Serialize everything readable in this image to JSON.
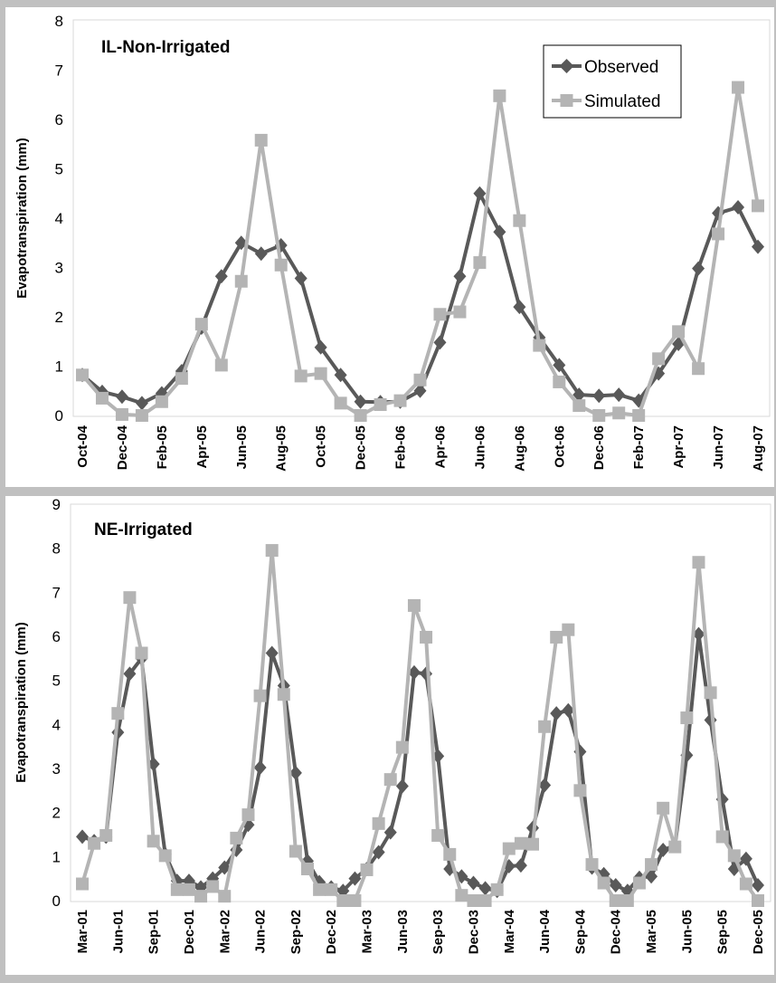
{
  "colors": {
    "observed": "#595959",
    "simulated": "#b4b4b4",
    "plot_bg": "#ffffff",
    "figure_bg": "#c0c0c0"
  },
  "chart_data": [
    {
      "type": "line",
      "title": "IL-Non-Irrigated",
      "ylabel": "Evapotranspiration (mm)",
      "xlabel": "",
      "ylim": [
        0,
        8
      ],
      "yticks": [
        "0",
        "1",
        "2",
        "3",
        "4",
        "5",
        "6",
        "7",
        "8"
      ],
      "xtick_labels": [
        "Oct-04",
        "Dec-04",
        "Feb-05",
        "Apr-05",
        "Jun-05",
        "Aug-05",
        "Oct-05",
        "Dec-05",
        "Feb-06",
        "Apr-06",
        "Jun-06",
        "Aug-06",
        "Oct-06",
        "Dec-06",
        "Feb-07",
        "Apr-07",
        "Jun-07",
        "Aug-07"
      ],
      "x": [
        "Oct-04",
        "Nov-04",
        "Dec-04",
        "Jan-05",
        "Feb-05",
        "Mar-05",
        "Apr-05",
        "May-05",
        "Jun-05",
        "Jul-05",
        "Aug-05",
        "Sep-05",
        "Oct-05",
        "Nov-05",
        "Dec-05",
        "Jan-06",
        "Feb-06",
        "Mar-06",
        "Apr-06",
        "May-06",
        "Jun-06",
        "Jul-06",
        "Aug-06",
        "Sep-06",
        "Oct-06",
        "Nov-06",
        "Dec-06",
        "Jan-07",
        "Feb-07",
        "Mar-07",
        "Apr-07",
        "May-07",
        "Jun-07",
        "Jul-07",
        "Aug-07"
      ],
      "legend": {
        "position": "top-right"
      },
      "series": [
        {
          "name": "Observed",
          "marker": "diamond",
          "values": [
            0.82,
            0.48,
            0.38,
            0.25,
            0.45,
            0.9,
            1.78,
            2.82,
            3.5,
            3.28,
            3.45,
            2.78,
            1.38,
            0.82,
            0.28,
            0.27,
            0.28,
            0.5,
            1.48,
            2.82,
            4.5,
            3.72,
            2.2,
            1.58,
            1.02,
            0.42,
            0.4,
            0.42,
            0.3,
            0.85,
            1.45,
            2.98,
            4.1,
            4.22,
            3.42
          ]
        },
        {
          "name": "Simulated",
          "marker": "square",
          "values": [
            0.82,
            0.35,
            0.02,
            0.0,
            0.28,
            0.75,
            1.85,
            1.02,
            2.72,
            5.58,
            3.05,
            0.8,
            0.85,
            0.25,
            0.0,
            0.22,
            0.3,
            0.72,
            2.05,
            2.1,
            3.1,
            6.48,
            3.95,
            1.42,
            0.68,
            0.2,
            0.0,
            0.05,
            0.0,
            1.15,
            1.7,
            0.95,
            3.68,
            6.65,
            4.25
          ]
        }
      ]
    },
    {
      "type": "line",
      "title": "NE-Irrigated",
      "ylabel": "Evapotranspiration (mm)",
      "xlabel": "",
      "ylim": [
        0,
        9
      ],
      "yticks": [
        "0",
        "1",
        "2",
        "3",
        "4",
        "5",
        "6",
        "7",
        "8",
        "9"
      ],
      "xtick_labels": [
        "Mar-01",
        "Jun-01",
        "Sep-01",
        "Dec-01",
        "Mar-02",
        "Jun-02",
        "Sep-02",
        "Dec-02",
        "Mar-03",
        "Jun-03",
        "Sep-03",
        "Dec-03",
        "Mar-04",
        "Jun-04",
        "Sep-04",
        "Dec-04",
        "Mar-05",
        "Jun-05",
        "Sep-05",
        "Dec-05"
      ],
      "x": [
        "Mar-01",
        "Apr-01",
        "May-01",
        "Jun-01",
        "Jul-01",
        "Aug-01",
        "Sep-01",
        "Oct-01",
        "Nov-01",
        "Dec-01",
        "Jan-02",
        "Feb-02",
        "Mar-02",
        "Apr-02",
        "May-02",
        "Jun-02",
        "Jul-02",
        "Aug-02",
        "Sep-02",
        "Oct-02",
        "Nov-02",
        "Dec-02",
        "Jan-03",
        "Feb-03",
        "Mar-03",
        "Apr-03",
        "May-03",
        "Jun-03",
        "Jul-03",
        "Aug-03",
        "Sep-03",
        "Oct-03",
        "Nov-03",
        "Dec-03",
        "Jan-04",
        "Feb-04",
        "Mar-04",
        "Apr-04",
        "May-04",
        "Jun-04",
        "Jul-04",
        "Aug-04",
        "Sep-04",
        "Oct-04",
        "Nov-04",
        "Dec-04",
        "Jan-05",
        "Feb-05",
        "Mar-05",
        "Apr-05",
        "May-05",
        "Jun-05",
        "Jul-05",
        "Aug-05",
        "Sep-05",
        "Oct-05",
        "Nov-05",
        "Dec-05"
      ],
      "legend": {
        "position": "none"
      },
      "series": [
        {
          "name": "Observed",
          "marker": "diamond",
          "values": [
            1.45,
            1.35,
            1.45,
            3.82,
            5.15,
            5.5,
            3.1,
            1.05,
            0.45,
            0.45,
            0.3,
            0.5,
            0.75,
            1.15,
            1.72,
            3.02,
            5.62,
            4.88,
            2.9,
            0.9,
            0.42,
            0.3,
            0.22,
            0.5,
            0.72,
            1.1,
            1.55,
            2.6,
            5.18,
            5.15,
            3.28,
            0.72,
            0.55,
            0.4,
            0.28,
            0.22,
            0.78,
            0.8,
            1.65,
            2.62,
            4.25,
            4.32,
            3.38,
            0.75,
            0.6,
            0.35,
            0.22,
            0.52,
            0.55,
            1.15,
            1.25,
            3.3,
            6.05,
            4.1,
            2.3,
            0.72,
            0.95,
            0.35
          ]
        },
        {
          "name": "Simulated",
          "marker": "square",
          "values": [
            0.38,
            1.3,
            1.48,
            4.25,
            6.88,
            5.62,
            1.35,
            1.02,
            0.25,
            0.25,
            0.1,
            0.32,
            0.1,
            1.42,
            1.95,
            4.65,
            7.95,
            4.68,
            1.12,
            0.72,
            0.25,
            0.25,
            0.0,
            0.0,
            0.7,
            1.75,
            2.75,
            3.48,
            6.7,
            5.98,
            1.48,
            1.05,
            0.12,
            0.0,
            0.0,
            0.25,
            1.18,
            1.3,
            1.28,
            3.95,
            5.98,
            6.15,
            2.5,
            0.82,
            0.4,
            0.0,
            0.0,
            0.4,
            0.82,
            2.1,
            1.22,
            4.15,
            7.68,
            4.72,
            1.45,
            1.02,
            0.38,
            0.0
          ]
        }
      ]
    }
  ]
}
